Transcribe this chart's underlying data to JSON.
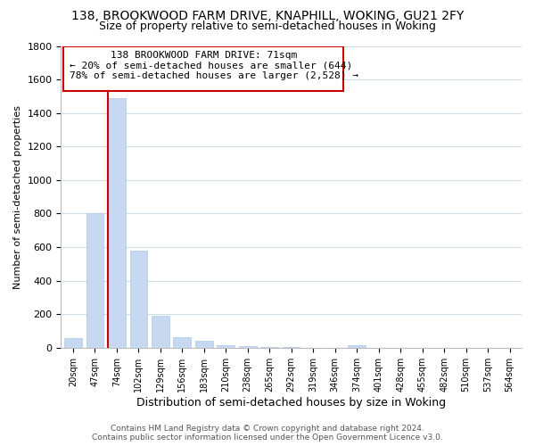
{
  "title": "138, BROOKWOOD FARM DRIVE, KNAPHILL, WOKING, GU21 2FY",
  "subtitle": "Size of property relative to semi-detached houses in Woking",
  "xlabel": "Distribution of semi-detached houses by size in Woking",
  "ylabel": "Number of semi-detached properties",
  "bar_labels": [
    "20sqm",
    "47sqm",
    "74sqm",
    "102sqm",
    "129sqm",
    "156sqm",
    "183sqm",
    "210sqm",
    "238sqm",
    "265sqm",
    "292sqm",
    "319sqm",
    "346sqm",
    "374sqm",
    "401sqm",
    "428sqm",
    "455sqm",
    "482sqm",
    "510sqm",
    "537sqm",
    "564sqm"
  ],
  "bar_values": [
    60,
    800,
    1490,
    580,
    190,
    65,
    42,
    15,
    8,
    4,
    2,
    1,
    0,
    15,
    0,
    0,
    0,
    0,
    0,
    0,
    0
  ],
  "bar_color": "#c6d9f1",
  "bar_edge_color": "#aec8e8",
  "property_line_x": 2,
  "property_line_color": "#cc0000",
  "annotation_title": "138 BROOKWOOD FARM DRIVE: 71sqm",
  "annotation_line1": "← 20% of semi-detached houses are smaller (644)",
  "annotation_line2": "78% of semi-detached houses are larger (2,528) →",
  "ylim": [
    0,
    1800
  ],
  "yticks": [
    0,
    200,
    400,
    600,
    800,
    1000,
    1200,
    1400,
    1600,
    1800
  ],
  "footer_line1": "Contains HM Land Registry data © Crown copyright and database right 2024.",
  "footer_line2": "Contains public sector information licensed under the Open Government Licence v3.0.",
  "background_color": "#ffffff",
  "grid_color": "#d0dde8"
}
